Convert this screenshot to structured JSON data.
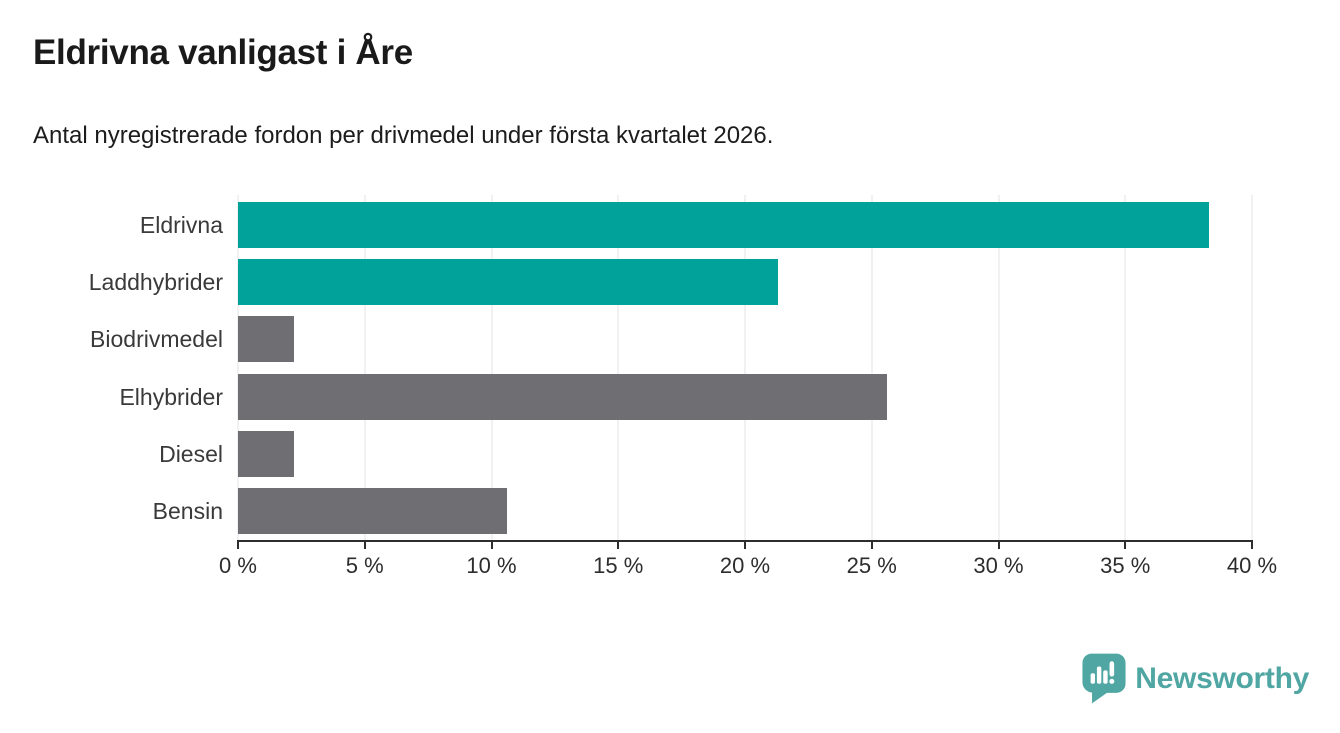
{
  "page": {
    "title": "Eldrivna vanligast i Åre",
    "subtitle": "Antal nyregistrerade fordon per drivmedel under första kvartalet 2026."
  },
  "branding": {
    "logo_text": "Newsworthy",
    "logo_icon": "newsworthy-speech-bubble-bar-chart-icon"
  },
  "colors": {
    "highlight_bar": "#00A299",
    "default_bar": "#6E6E73",
    "axis": "#2D2D2D",
    "grid": "#E3E3E3",
    "title_text": "#1A1A1A",
    "label_text": "#3A3A3A",
    "logo": "#4FA6A2",
    "background": "#FFFFFF"
  },
  "chart_data": {
    "type": "bar",
    "orientation": "horizontal",
    "title": "Eldrivna vanligast i Åre",
    "subtitle": "Antal nyregistrerade fordon per drivmedel under första kvartalet 2026.",
    "categories": [
      "Eldrivna",
      "Laddhybrider",
      "Biodrivmedel",
      "Elhybrider",
      "Diesel",
      "Bensin"
    ],
    "values": [
      38.3,
      21.3,
      2.2,
      25.6,
      2.2,
      10.6
    ],
    "unit": "%",
    "bar_color_keys": [
      "highlight",
      "highlight",
      "default",
      "default",
      "default",
      "default"
    ],
    "xlabel": "",
    "ylabel": "",
    "xlim": [
      0,
      40
    ],
    "x_ticks": [
      0,
      5,
      10,
      15,
      20,
      25,
      30,
      35,
      40
    ],
    "x_tick_labels": [
      "0 %",
      "5 %",
      "10 %",
      "15 %",
      "20 %",
      "25 %",
      "30 %",
      "35 %",
      "40 %"
    ],
    "grid": true,
    "legend": "none"
  }
}
